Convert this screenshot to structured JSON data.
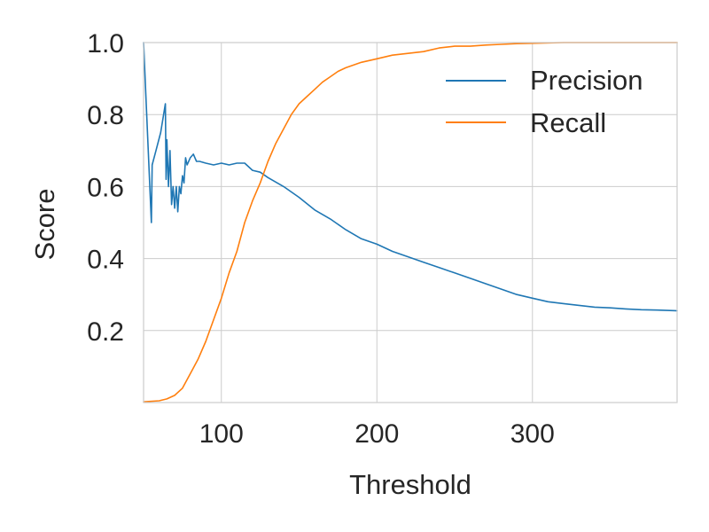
{
  "chart_data": {
    "type": "line",
    "title": "",
    "xlabel": "Threshold",
    "ylabel": "Score",
    "xlim": [
      50,
      393
    ],
    "ylim": [
      0,
      1
    ],
    "xticks": [
      100,
      200,
      300
    ],
    "yticks": [
      0.2,
      0.4,
      0.6,
      0.8,
      1.0
    ],
    "xtick_labels": [
      "100",
      "200",
      "300"
    ],
    "ytick_labels": [
      "0.2",
      "0.4",
      "0.6",
      "0.8",
      "1.0"
    ],
    "grid": true,
    "legend_position": "top-right",
    "series": [
      {
        "name": "Precision",
        "color": "#1f77b4",
        "points": [
          [
            50,
            1.0
          ],
          [
            55,
            0.5
          ],
          [
            55.5,
            0.66
          ],
          [
            58,
            0.7
          ],
          [
            61,
            0.75
          ],
          [
            64,
            0.83
          ],
          [
            64.5,
            0.62
          ],
          [
            65,
            0.73
          ],
          [
            66,
            0.6
          ],
          [
            67,
            0.7
          ],
          [
            68,
            0.55
          ],
          [
            69,
            0.6
          ],
          [
            70,
            0.54
          ],
          [
            71,
            0.6
          ],
          [
            72,
            0.53
          ],
          [
            73,
            0.6
          ],
          [
            74,
            0.58
          ],
          [
            75,
            0.63
          ],
          [
            76,
            0.61
          ],
          [
            77,
            0.68
          ],
          [
            78,
            0.66
          ],
          [
            80,
            0.68
          ],
          [
            82,
            0.69
          ],
          [
            84,
            0.67
          ],
          [
            86,
            0.67
          ],
          [
            90,
            0.665
          ],
          [
            95,
            0.66
          ],
          [
            100,
            0.665
          ],
          [
            105,
            0.66
          ],
          [
            110,
            0.665
          ],
          [
            115,
            0.665
          ],
          [
            120,
            0.645
          ],
          [
            125,
            0.64
          ],
          [
            130,
            0.625
          ],
          [
            140,
            0.6
          ],
          [
            150,
            0.57
          ],
          [
            160,
            0.535
          ],
          [
            170,
            0.51
          ],
          [
            180,
            0.48
          ],
          [
            190,
            0.455
          ],
          [
            200,
            0.44
          ],
          [
            210,
            0.42
          ],
          [
            220,
            0.405
          ],
          [
            230,
            0.39
          ],
          [
            240,
            0.375
          ],
          [
            250,
            0.36
          ],
          [
            260,
            0.345
          ],
          [
            270,
            0.33
          ],
          [
            280,
            0.315
          ],
          [
            290,
            0.3
          ],
          [
            300,
            0.29
          ],
          [
            310,
            0.28
          ],
          [
            320,
            0.275
          ],
          [
            330,
            0.27
          ],
          [
            340,
            0.265
          ],
          [
            350,
            0.263
          ],
          [
            360,
            0.26
          ],
          [
            370,
            0.258
          ],
          [
            380,
            0.257
          ],
          [
            393,
            0.255
          ]
        ]
      },
      {
        "name": "Recall",
        "color": "#ff7f0e",
        "points": [
          [
            50,
            0.002
          ],
          [
            60,
            0.005
          ],
          [
            65,
            0.01
          ],
          [
            70,
            0.02
          ],
          [
            75,
            0.04
          ],
          [
            80,
            0.08
          ],
          [
            85,
            0.12
          ],
          [
            90,
            0.17
          ],
          [
            95,
            0.23
          ],
          [
            100,
            0.29
          ],
          [
            105,
            0.36
          ],
          [
            110,
            0.42
          ],
          [
            115,
            0.5
          ],
          [
            120,
            0.56
          ],
          [
            125,
            0.61
          ],
          [
            130,
            0.67
          ],
          [
            135,
            0.72
          ],
          [
            140,
            0.76
          ],
          [
            145,
            0.8
          ],
          [
            150,
            0.83
          ],
          [
            155,
            0.85
          ],
          [
            160,
            0.87
          ],
          [
            165,
            0.89
          ],
          [
            170,
            0.905
          ],
          [
            175,
            0.92
          ],
          [
            180,
            0.93
          ],
          [
            190,
            0.945
          ],
          [
            200,
            0.955
          ],
          [
            210,
            0.965
          ],
          [
            220,
            0.97
          ],
          [
            230,
            0.975
          ],
          [
            240,
            0.985
          ],
          [
            250,
            0.99
          ],
          [
            260,
            0.99
          ],
          [
            270,
            0.993
          ],
          [
            280,
            0.995
          ],
          [
            290,
            0.997
          ],
          [
            300,
            0.998
          ],
          [
            320,
            1.0
          ],
          [
            393,
            1.0
          ]
        ]
      }
    ]
  }
}
